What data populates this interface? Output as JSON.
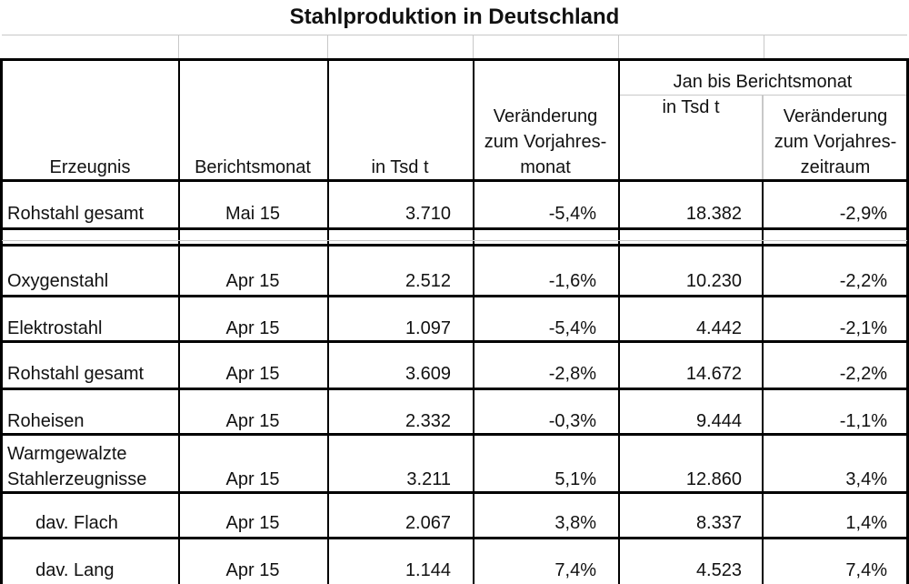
{
  "title": "Stahlproduktion in Deutschland",
  "header": {
    "col_erzeugnis": "Erzeugnis",
    "col_berichtsmonat": "Berichtsmonat",
    "col_in_tsd_t": "in Tsd t",
    "col_veraenderung_line1": "Veränderung",
    "col_veraenderung_line2": "zum Vorjahres-",
    "col_veraenderung_line3": "monat",
    "group_jan": "Jan bis Berichtsmonat",
    "col_jan_in_tsd_t": "in Tsd t",
    "col_jan_veraenderung_line1": "Veränderung",
    "col_jan_veraenderung_line2": "zum Vorjahres-",
    "col_jan_veraenderung_line3": "zeitraum"
  },
  "summary_row": {
    "erzeugnis": "Rohstahl gesamt",
    "monat": "Mai 15",
    "tsd": "3.710",
    "veraenderung": "-5,4%",
    "jan_tsd": "18.382",
    "jan_veraenderung": "-2,9%"
  },
  "rows": [
    {
      "erzeugnis": "Oxygenstahl",
      "monat": "Apr 15",
      "tsd": "2.512",
      "veraenderung": "-1,6%",
      "jan_tsd": "10.230",
      "jan_veraenderung": "-2,2%"
    },
    {
      "erzeugnis": "Elektrostahl",
      "monat": "Apr 15",
      "tsd": "1.097",
      "veraenderung": "-5,4%",
      "jan_tsd": "4.442",
      "jan_veraenderung": "-2,1%"
    },
    {
      "erzeugnis": "Rohstahl gesamt",
      "monat": "Apr 15",
      "tsd": "3.609",
      "veraenderung": "-2,8%",
      "jan_tsd": "14.672",
      "jan_veraenderung": "-2,2%"
    },
    {
      "erzeugnis": "Roheisen",
      "monat": "Apr 15",
      "tsd": "2.332",
      "veraenderung": "-0,3%",
      "jan_tsd": "9.444",
      "jan_veraenderung": "-1,1%"
    },
    {
      "erzeugnis_line1": "Warmgewalzte",
      "erzeugnis": "Stahlerzeugnisse",
      "monat": "Apr 15",
      "tsd": "3.211",
      "veraenderung": "5,1%",
      "jan_tsd": "12.860",
      "jan_veraenderung": "3,4%"
    },
    {
      "erzeugnis": "  dav. Flach",
      "monat": "Apr 15",
      "tsd": "2.067",
      "veraenderung": "3,8%",
      "jan_tsd": "8.337",
      "jan_veraenderung": "1,4%"
    },
    {
      "erzeugnis": "  dav. Lang",
      "monat": "Apr 15",
      "tsd": "1.144",
      "veraenderung": "7,4%",
      "jan_tsd": "4.523",
      "jan_veraenderung": "7,4%"
    }
  ]
}
